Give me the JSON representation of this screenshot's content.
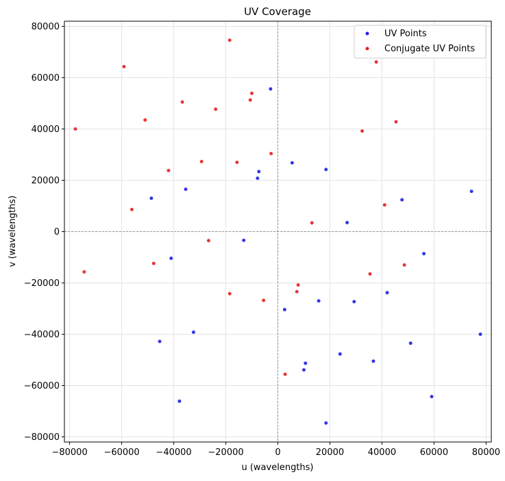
{
  "chart_data": {
    "type": "scatter",
    "title": "UV Coverage",
    "xlabel": "u (wavelengths)",
    "ylabel": "v (wavelengths)",
    "xlim": [
      -82000,
      82000
    ],
    "ylim": [
      -82000,
      82000
    ],
    "x_ticks": [
      -80000,
      -60000,
      -40000,
      -20000,
      0,
      20000,
      40000,
      60000,
      80000
    ],
    "y_ticks": [
      -80000,
      -60000,
      -40000,
      -20000,
      0,
      20000,
      40000,
      60000,
      80000
    ],
    "x_tick_labels": [
      "−80000",
      "−60000",
      "−40000",
      "−20000",
      "0",
      "20000",
      "40000",
      "60000",
      "80000"
    ],
    "y_tick_labels": [
      "−80000",
      "−60000",
      "−40000",
      "−20000",
      "0",
      "20000",
      "40000",
      "60000",
      "80000"
    ],
    "grid": true,
    "reference_lines": {
      "x": 0,
      "y": 0,
      "style": "dashed"
    },
    "legend": {
      "position": "top-right",
      "entries": [
        "UV Points",
        "Conjugate UV Points"
      ]
    },
    "series": [
      {
        "name": "UV Points",
        "color": "#1f1fe6",
        "points": [
          [
            -2800,
            55600
          ],
          [
            -7800,
            20800
          ],
          [
            -7300,
            23400
          ],
          [
            5500,
            26800
          ],
          [
            18500,
            24200
          ],
          [
            -35400,
            16500
          ],
          [
            -48600,
            13000
          ],
          [
            47700,
            12400
          ],
          [
            74400,
            15700
          ],
          [
            26600,
            3500
          ],
          [
            -13100,
            -3400
          ],
          [
            -41000,
            -10400
          ],
          [
            56100,
            -8600
          ],
          [
            42000,
            -23800
          ],
          [
            15700,
            -27000
          ],
          [
            29300,
            -27300
          ],
          [
            2600,
            -30400
          ],
          [
            -32400,
            -39200
          ],
          [
            -45400,
            -42800
          ],
          [
            77800,
            -40000
          ],
          [
            51000,
            -43500
          ],
          [
            23900,
            -47700
          ],
          [
            10600,
            -51300
          ],
          [
            36700,
            -50500
          ],
          [
            10000,
            -53900
          ],
          [
            59100,
            -64300
          ],
          [
            -37800,
            -66100
          ],
          [
            18500,
            -74600
          ]
        ]
      },
      {
        "name": "Conjugate UV Points",
        "color": "#e62020",
        "points": [
          [
            2800,
            -55600
          ],
          [
            7800,
            -20800
          ],
          [
            7300,
            -23400
          ],
          [
            -5500,
            -26800
          ],
          [
            -18500,
            -24200
          ],
          [
            35400,
            -16500
          ],
          [
            48600,
            -13000
          ],
          [
            -47700,
            -12400
          ],
          [
            -74400,
            -15700
          ],
          [
            -26600,
            -3500
          ],
          [
            13100,
            3400
          ],
          [
            41000,
            10400
          ],
          [
            -56100,
            8600
          ],
          [
            -42000,
            23800
          ],
          [
            -15700,
            27000
          ],
          [
            -29300,
            27300
          ],
          [
            -2600,
            30400
          ],
          [
            32400,
            39200
          ],
          [
            45400,
            42800
          ],
          [
            -77800,
            40000
          ],
          [
            -51000,
            43500
          ],
          [
            -23900,
            47700
          ],
          [
            -10600,
            51300
          ],
          [
            -36700,
            50500
          ],
          [
            -10000,
            53900
          ],
          [
            -59100,
            64300
          ],
          [
            37800,
            66100
          ],
          [
            -18500,
            74600
          ]
        ]
      }
    ]
  }
}
